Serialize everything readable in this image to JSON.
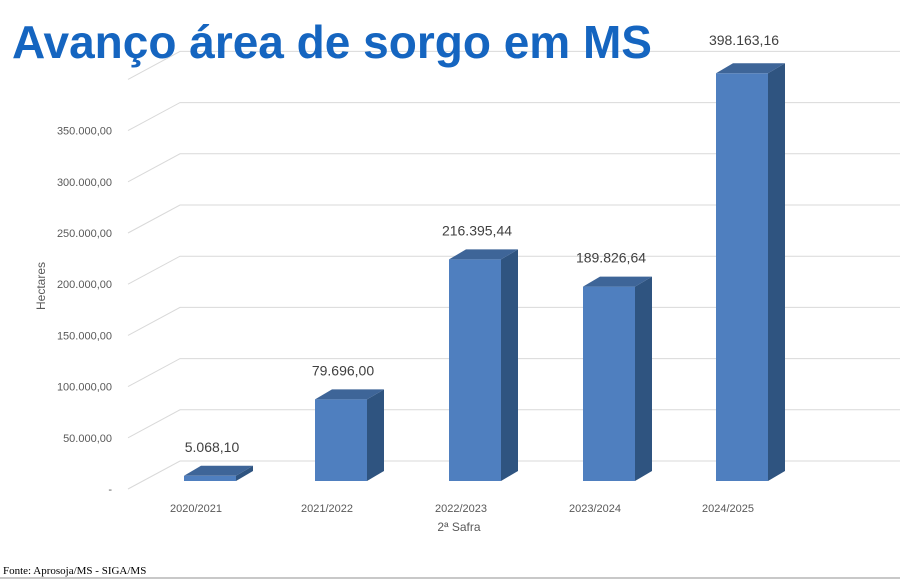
{
  "title": "Avanço área de sorgo em MS",
  "source": "Fonte: Aprosoja/MS - SIGA/MS",
  "colors": {
    "title": "#1565c0",
    "bar_front": "#4f7fbf",
    "bar_side": "#2f5480",
    "bar_top": "#3e6598",
    "grid": "#d9d9d9",
    "axis_text": "#595959",
    "label_text": "#404040"
  },
  "chart_data": {
    "type": "bar",
    "categories": [
      "2020/2021",
      "2021/2022",
      "2022/2023",
      "2023/2024",
      "2024/2025"
    ],
    "values": [
      5068.1,
      79696.0,
      216395.44,
      189826.64,
      398163.16
    ],
    "data_labels": [
      "5.068,10",
      "79.696,00",
      "216.395,44",
      "189.826,64",
      "398.163,16"
    ],
    "yticks": [
      0,
      50000,
      100000,
      150000,
      200000,
      250000,
      300000,
      350000
    ],
    "ytick_labels": [
      "-",
      "50.000,00",
      "100.000,00",
      "150.000,00",
      "200.000,00",
      "250.000,00",
      "300.000,00",
      "350.000,00"
    ],
    "ylim": [
      0,
      400000
    ],
    "xlabel": "2ª Safra",
    "ylabel": "Hectares",
    "grid": true,
    "style": "3d-column"
  }
}
